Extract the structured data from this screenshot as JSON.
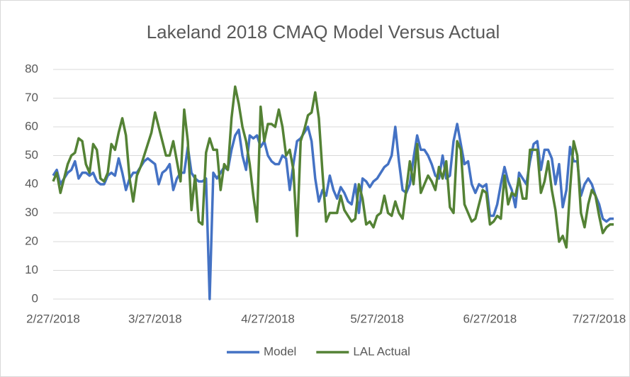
{
  "chart_data": {
    "type": "line",
    "title": "Lakeland 2018 CMAQ Model Versus Actual",
    "x": [
      "2018-02-27",
      "2018-02-28",
      "2018-03-01",
      "2018-03-02",
      "2018-03-03",
      "2018-03-04",
      "2018-03-05",
      "2018-03-06",
      "2018-03-07",
      "2018-03-08",
      "2018-03-09",
      "2018-03-10",
      "2018-03-11",
      "2018-03-12",
      "2018-03-13",
      "2018-03-14",
      "2018-03-15",
      "2018-03-16",
      "2018-03-17",
      "2018-03-18",
      "2018-03-19",
      "2018-03-20",
      "2018-03-21",
      "2018-03-22",
      "2018-03-23",
      "2018-03-24",
      "2018-03-25",
      "2018-03-26",
      "2018-03-27",
      "2018-03-28",
      "2018-03-29",
      "2018-03-30",
      "2018-03-31",
      "2018-04-01",
      "2018-04-02",
      "2018-04-03",
      "2018-04-04",
      "2018-04-05",
      "2018-04-06",
      "2018-04-07",
      "2018-04-08",
      "2018-04-09",
      "2018-04-10",
      "2018-04-11",
      "2018-04-12",
      "2018-04-13",
      "2018-04-14",
      "2018-04-15",
      "2018-04-16",
      "2018-04-17",
      "2018-04-18",
      "2018-04-19",
      "2018-04-20",
      "2018-04-21",
      "2018-04-22",
      "2018-04-23",
      "2018-04-24",
      "2018-04-25",
      "2018-04-26",
      "2018-04-27",
      "2018-04-28",
      "2018-04-29",
      "2018-04-30",
      "2018-05-01",
      "2018-05-02",
      "2018-05-03",
      "2018-05-04",
      "2018-05-05",
      "2018-05-06",
      "2018-05-07",
      "2018-05-08",
      "2018-05-09",
      "2018-05-10",
      "2018-05-11",
      "2018-05-12",
      "2018-05-13",
      "2018-05-14",
      "2018-05-15",
      "2018-05-16",
      "2018-05-17",
      "2018-05-18",
      "2018-05-19",
      "2018-05-20",
      "2018-05-21",
      "2018-05-22",
      "2018-05-23",
      "2018-05-24",
      "2018-05-25",
      "2018-05-26",
      "2018-05-27",
      "2018-05-28",
      "2018-05-29",
      "2018-05-30",
      "2018-05-31",
      "2018-06-01",
      "2018-06-02",
      "2018-06-03",
      "2018-06-04",
      "2018-06-05",
      "2018-06-06",
      "2018-06-07",
      "2018-06-08",
      "2018-06-09",
      "2018-06-10",
      "2018-06-11",
      "2018-06-12",
      "2018-06-13",
      "2018-06-14",
      "2018-06-15",
      "2018-06-16",
      "2018-06-17",
      "2018-06-18",
      "2018-06-19",
      "2018-06-20",
      "2018-06-21",
      "2018-06-22",
      "2018-06-23",
      "2018-06-24",
      "2018-06-25",
      "2018-06-26",
      "2018-06-27",
      "2018-06-28",
      "2018-06-29",
      "2018-06-30",
      "2018-07-01",
      "2018-07-02",
      "2018-07-03",
      "2018-07-04",
      "2018-07-05",
      "2018-07-06",
      "2018-07-07",
      "2018-07-08",
      "2018-07-09",
      "2018-07-10",
      "2018-07-11",
      "2018-07-12",
      "2018-07-13",
      "2018-07-14",
      "2018-07-15",
      "2018-07-16",
      "2018-07-17",
      "2018-07-18",
      "2018-07-19",
      "2018-07-20",
      "2018-07-21",
      "2018-07-22",
      "2018-07-23",
      "2018-07-24",
      "2018-07-25",
      "2018-07-26",
      "2018-07-27",
      "2018-07-28",
      "2018-07-29",
      "2018-07-30",
      "2018-07-31"
    ],
    "series": [
      {
        "name": "Model",
        "color": "#4472c4",
        "values": [
          43,
          45,
          40,
          42,
          44,
          45,
          48,
          42,
          44,
          44,
          43,
          44,
          41,
          40,
          40,
          43,
          44,
          43,
          49,
          44,
          38,
          42,
          44,
          44,
          46,
          48,
          49,
          48,
          47,
          40,
          44,
          45,
          47,
          38,
          42,
          44,
          44,
          53,
          44,
          42,
          41,
          41,
          42,
          0,
          44,
          42,
          44,
          46,
          45,
          52,
          57,
          59,
          50,
          45,
          57,
          56,
          57,
          53,
          55,
          50,
          48,
          47,
          47,
          50,
          49,
          38,
          47,
          55,
          56,
          58,
          60,
          55,
          42,
          34,
          38,
          36,
          43,
          38,
          35,
          39,
          37,
          34,
          33,
          40,
          30,
          42,
          41,
          39,
          41,
          42,
          44,
          46,
          47,
          50,
          60,
          48,
          38,
          37,
          40,
          49,
          57,
          52,
          52,
          50,
          47,
          43,
          42,
          50,
          42,
          43,
          55,
          61,
          54,
          47,
          48,
          40,
          37,
          40,
          39,
          40,
          29,
          29,
          33,
          40,
          46,
          41,
          38,
          32,
          44,
          42,
          40,
          48,
          54,
          55,
          45,
          52,
          52,
          49,
          40,
          47,
          32,
          38,
          53,
          48,
          48,
          36,
          40,
          42,
          40,
          36,
          33,
          28,
          27,
          28,
          28
        ]
      },
      {
        "name": "LAL Actual",
        "color": "#548235",
        "values": [
          41,
          44,
          37,
          42,
          47,
          50,
          51,
          56,
          55,
          47,
          44,
          54,
          52,
          42,
          41,
          44,
          54,
          52,
          58,
          63,
          57,
          42,
          34,
          43,
          46,
          50,
          54,
          58,
          65,
          60,
          55,
          50,
          50,
          55,
          48,
          41,
          66,
          55,
          31,
          43,
          27,
          26,
          51,
          56,
          52,
          52,
          38,
          47,
          45,
          63,
          74,
          68,
          60,
          55,
          47,
          36,
          27,
          67,
          55,
          61,
          61,
          60,
          66,
          60,
          50,
          52,
          45,
          22,
          55,
          59,
          64,
          65,
          72,
          63,
          44,
          27,
          30,
          30,
          30,
          36,
          31,
          29,
          27,
          28,
          40,
          35,
          26,
          27,
          25,
          29,
          30,
          36,
          30,
          29,
          34,
          30,
          28,
          38,
          48,
          40,
          54,
          37,
          40,
          43,
          41,
          38,
          46,
          42,
          48,
          32,
          30,
          55,
          52,
          33,
          30,
          27,
          28,
          33,
          38,
          37,
          26,
          27,
          29,
          28,
          43,
          33,
          37,
          36,
          42,
          35,
          35,
          52,
          52,
          52,
          37,
          41,
          48,
          38,
          31,
          20,
          22,
          18,
          38,
          55,
          50,
          30,
          25,
          33,
          38,
          36,
          29,
          23,
          25,
          26,
          26
        ]
      }
    ],
    "xlim": [
      "2018-02-27",
      "2018-07-31"
    ],
    "xticks": [
      {
        "value": "2018-02-27",
        "label": "2/27/2018"
      },
      {
        "value": "2018-03-27",
        "label": "3/27/2018"
      },
      {
        "value": "2018-04-27",
        "label": "4/27/2018"
      },
      {
        "value": "2018-05-27",
        "label": "5/27/2018"
      },
      {
        "value": "2018-06-27",
        "label": "6/27/2018"
      },
      {
        "value": "2018-07-27",
        "label": "7/27/2018"
      }
    ],
    "ylim": [
      0,
      80
    ],
    "yticks": [
      0,
      10,
      20,
      30,
      40,
      50,
      60,
      70,
      80
    ],
    "grid": true,
    "legend": "bottom"
  }
}
